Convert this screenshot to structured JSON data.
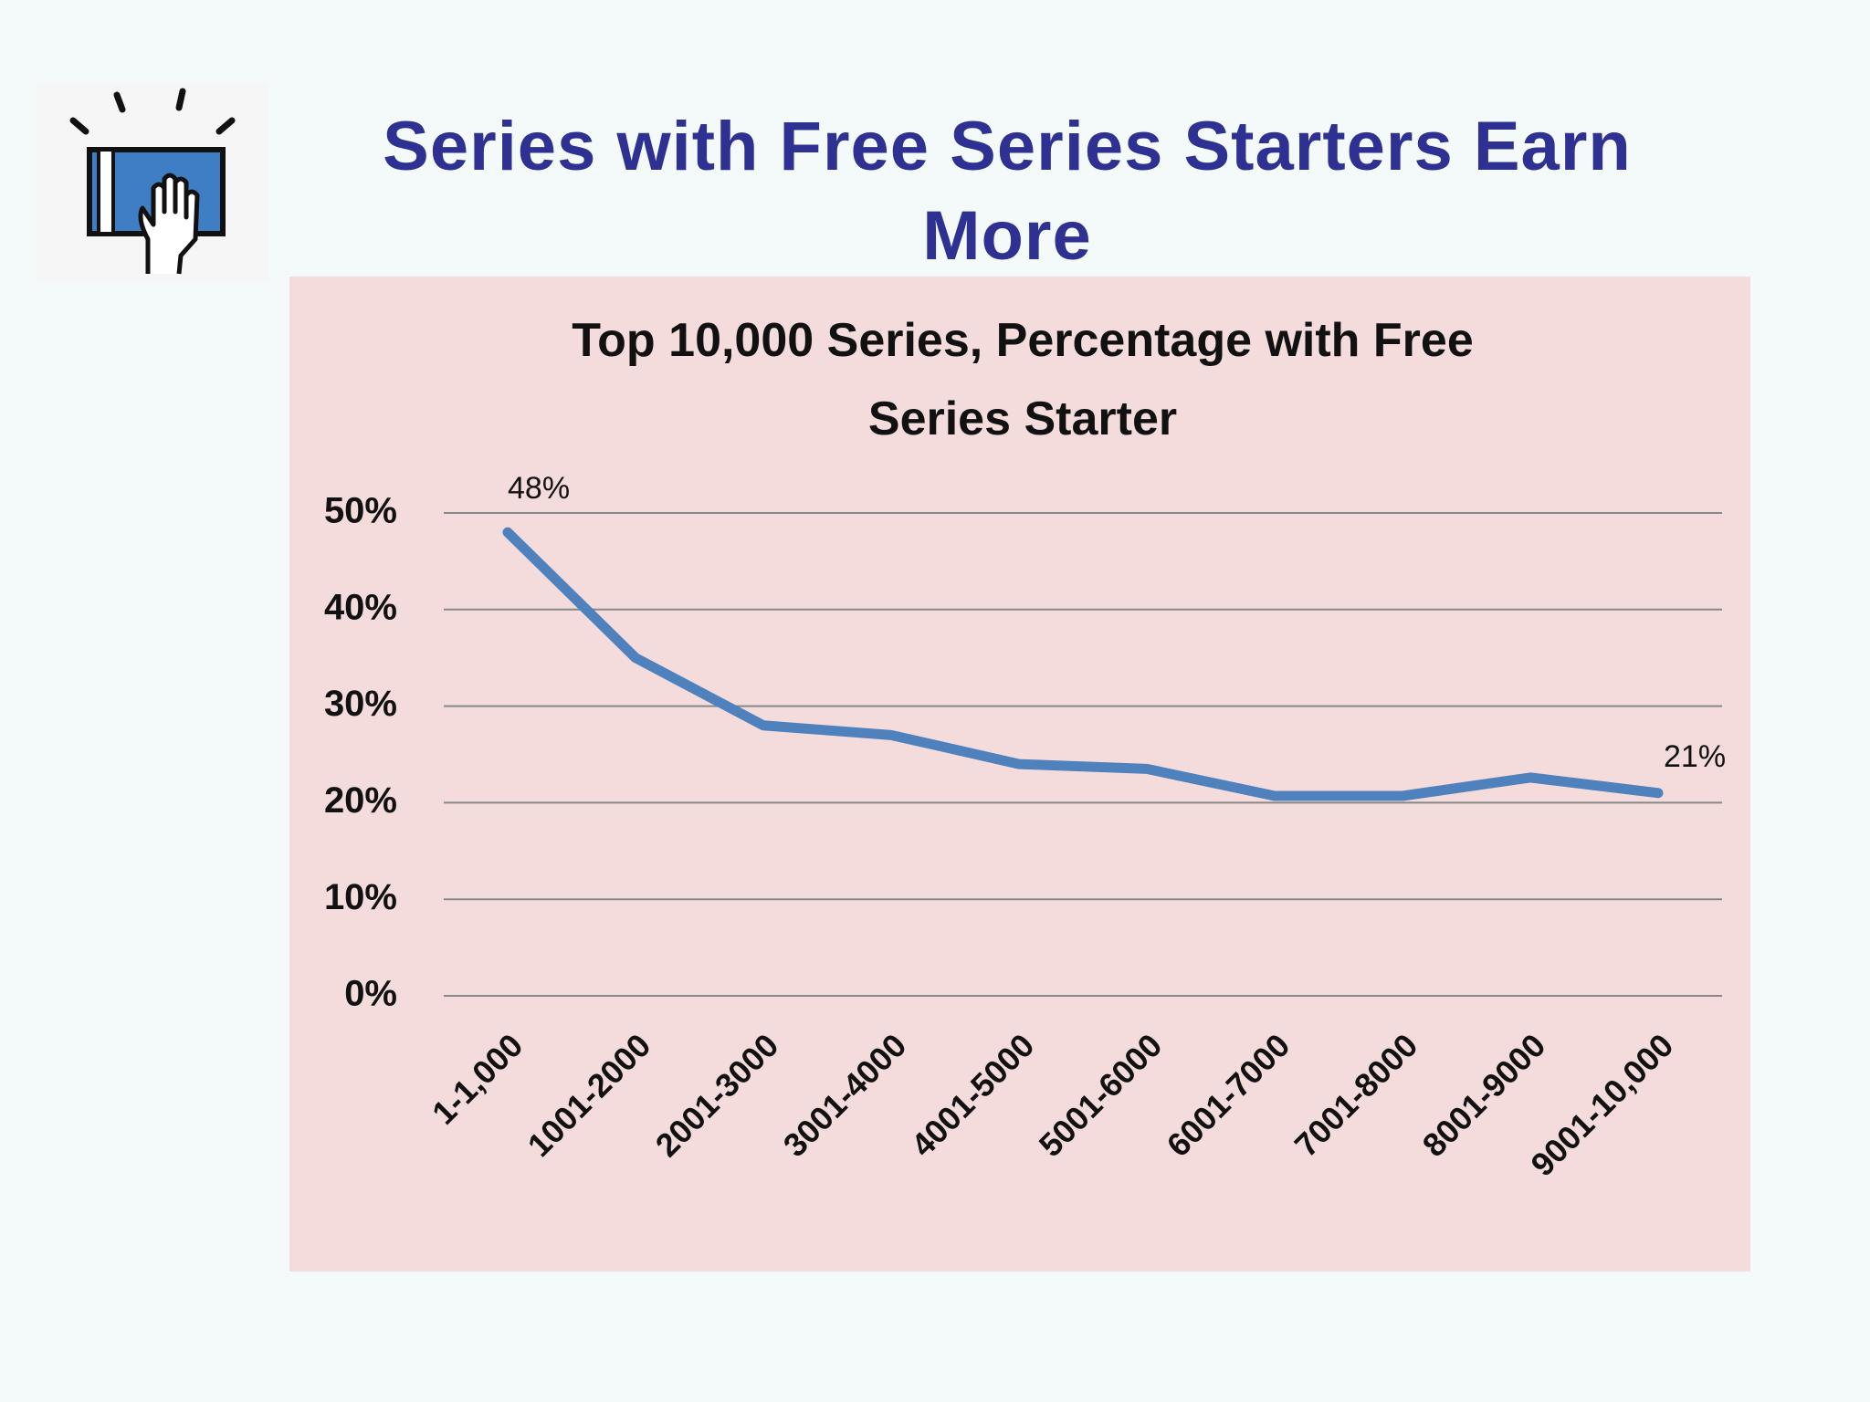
{
  "slide_title": "Series with Free Series Starters Earn More",
  "chart_data": {
    "type": "line",
    "title": "Top 10,000 Series, Percentage with Free Series Starter",
    "categories": [
      "1-1,000",
      "1001-2000",
      "2001-3000",
      "3001-4000",
      "4001-5000",
      "5001-6000",
      "6001-7000",
      "7001-8000",
      "8001-9000",
      "9001-10,000"
    ],
    "series": [
      {
        "color": "#4f81bd",
        "values": [
          48,
          35,
          28,
          27,
          24,
          23.5,
          20.7,
          20.7,
          22.6,
          21
        ],
        "value_labels": [
          "48%",
          null,
          null,
          null,
          null,
          null,
          null,
          null,
          null,
          "21%"
        ]
      }
    ],
    "ylim": [
      0,
      50
    ],
    "yticks": [
      {
        "value": 0,
        "label": "0%"
      },
      {
        "value": 10,
        "label": "10%"
      },
      {
        "value": 20,
        "label": "20%"
      },
      {
        "value": 30,
        "label": "30%"
      },
      {
        "value": 40,
        "label": "40%"
      },
      {
        "value": 50,
        "label": "50%"
      }
    ],
    "grid": true
  }
}
